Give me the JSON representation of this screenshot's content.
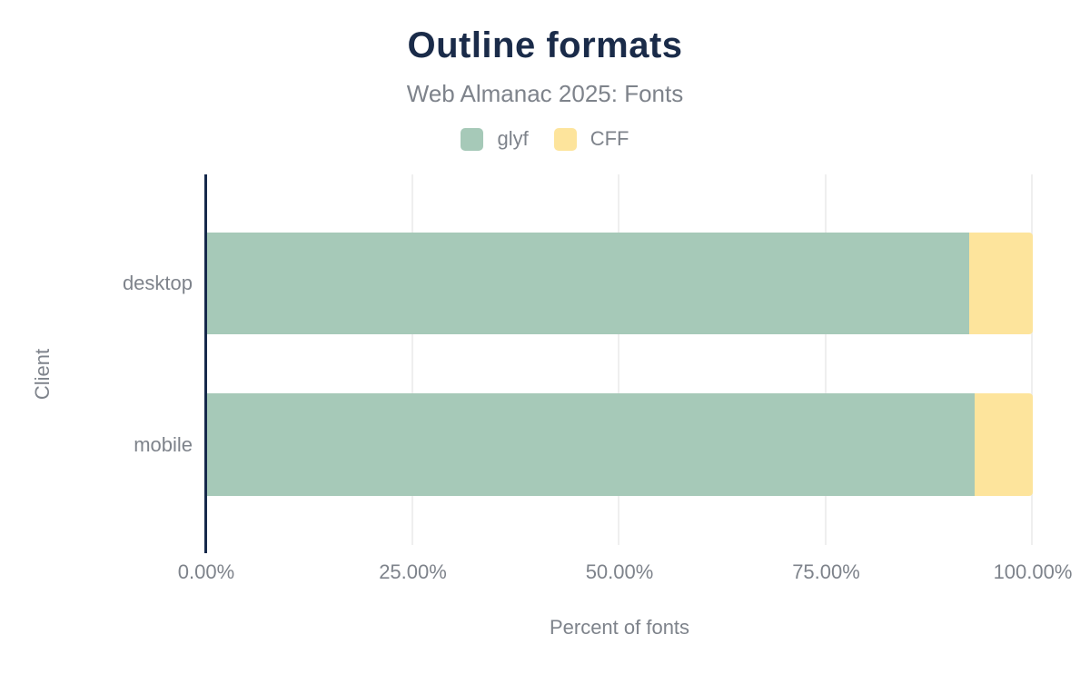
{
  "chart_data": {
    "type": "bar",
    "orientation": "horizontal",
    "stacked": true,
    "title": "Outline formats",
    "subtitle": "Web Almanac 2025: Fonts",
    "xlabel": "Percent of fonts",
    "ylabel": "Client",
    "categories": [
      "desktop",
      "mobile"
    ],
    "series": [
      {
        "name": "glyf",
        "color": "#a6c9b8",
        "values": [
          92.3,
          93.0
        ]
      },
      {
        "name": "CFF",
        "color": "#fde49c",
        "values": [
          7.7,
          7.0
        ]
      }
    ],
    "xlim": [
      0,
      100
    ],
    "x_ticks": [
      0,
      25,
      50,
      75,
      100
    ],
    "x_tick_labels": [
      "0.00%",
      "25.00%",
      "50.00%",
      "75.00%",
      "100.00%"
    ],
    "grid": "vertical",
    "legend_position": "top"
  },
  "colors": {
    "title": "#1a2b49",
    "text_muted": "#7e838b",
    "axis_line": "#16294b",
    "gridline": "#efefef",
    "background": "#ffffff",
    "glyf": "#a6c9b8",
    "cff": "#fde49c"
  }
}
